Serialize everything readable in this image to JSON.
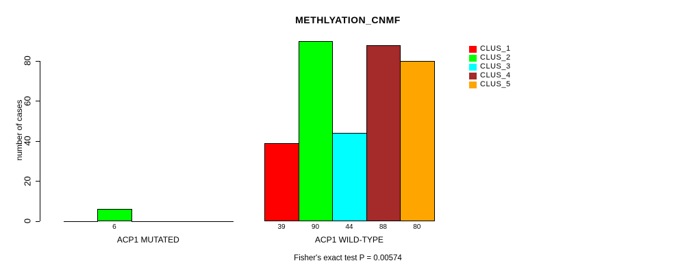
{
  "title": "METHLYATION_CNMF",
  "footer": "Fisher's exact test P = 0.00574",
  "chart_data": {
    "type": "bar",
    "title": "METHLYATION_CNMF",
    "ylabel": "number of cases",
    "xlabel": "",
    "annotation": "Fisher's exact test P = 0.00574",
    "series": [
      "CLUS_1",
      "CLUS_2",
      "CLUS_3",
      "CLUS_4",
      "CLUS_5"
    ],
    "colors": [
      "#FF0000",
      "#00FF00",
      "#00FFFF",
      "#A52A2A",
      "#FFA500"
    ],
    "groups": [
      {
        "label": "ACP1 MUTATED",
        "values": [
          0,
          6,
          0,
          0,
          0
        ]
      },
      {
        "label": "ACP1 WILD-TYPE",
        "values": [
          39,
          90,
          44,
          88,
          80
        ]
      }
    ],
    "yticks": [
      0,
      20,
      40,
      60,
      80
    ],
    "ylim": [
      0,
      90
    ],
    "grid": false,
    "legend_position": "right",
    "bar_value_labels": "shown below axis for non-zero bars"
  }
}
